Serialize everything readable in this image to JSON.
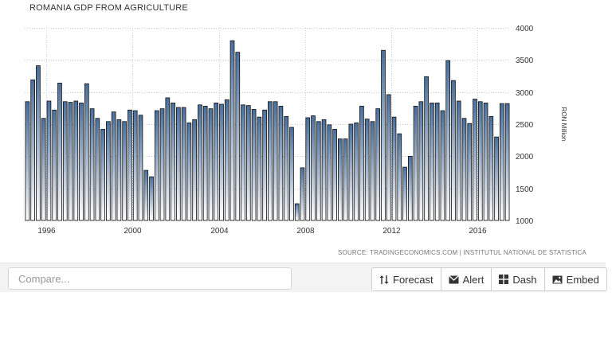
{
  "chart_data": {
    "type": "bar",
    "title": "ROMANIA GDP FROM AGRICULTURE",
    "ylabel": "RON Million",
    "ylim": [
      1000,
      4000
    ],
    "yticks": [
      1000,
      1500,
      2000,
      2500,
      3000,
      3500,
      4000
    ],
    "x_range": [
      1995.0,
      2017.5
    ],
    "xticks": [
      "1996",
      "2000",
      "2004",
      "2008",
      "2012",
      "2016"
    ],
    "grid": true,
    "legend": "none",
    "bar_color_top": "#4a6f9c",
    "bar_color_bottom": "#ffffff",
    "x": [
      1995.0,
      1995.25,
      1995.5,
      1995.75,
      1996.0,
      1996.25,
      1996.5,
      1996.75,
      1997.0,
      1997.25,
      1997.5,
      1997.75,
      1998.0,
      1998.25,
      1998.5,
      1998.75,
      1999.0,
      1999.25,
      1999.5,
      1999.75,
      2000.0,
      2000.25,
      2000.5,
      2000.75,
      2001.0,
      2001.25,
      2001.5,
      2001.75,
      2002.0,
      2002.25,
      2002.5,
      2002.75,
      2003.0,
      2003.25,
      2003.5,
      2003.75,
      2004.0,
      2004.25,
      2004.5,
      2004.75,
      2005.0,
      2005.25,
      2005.5,
      2005.75,
      2006.0,
      2006.25,
      2006.5,
      2006.75,
      2007.0,
      2007.25,
      2007.5,
      2007.75,
      2008.0,
      2008.25,
      2008.5,
      2008.75,
      2009.0,
      2009.25,
      2009.5,
      2009.75,
      2010.0,
      2010.25,
      2010.5,
      2010.75,
      2011.0,
      2011.25,
      2011.5,
      2011.75,
      2012.0,
      2012.25,
      2012.5,
      2012.75,
      2013.0,
      2013.25,
      2013.5,
      2013.75,
      2014.0,
      2014.25,
      2014.5,
      2014.75,
      2015.0,
      2015.25,
      2015.5,
      2015.75,
      2016.0,
      2016.25,
      2016.5,
      2016.75,
      2017.0,
      2017.25
    ],
    "values": [
      2850,
      3190,
      3410,
      2590,
      2860,
      2720,
      3140,
      2850,
      2840,
      2860,
      2830,
      3130,
      2740,
      2590,
      2420,
      2540,
      2690,
      2570,
      2540,
      2720,
      2710,
      2640,
      1780,
      1680,
      2710,
      2740,
      2910,
      2830,
      2760,
      2760,
      2520,
      2570,
      2800,
      2780,
      2740,
      2830,
      2810,
      2880,
      3800,
      3620,
      2800,
      2790,
      2730,
      2610,
      2720,
      2850,
      2850,
      2780,
      2620,
      2450,
      1260,
      1820,
      2600,
      2630,
      2540,
      2570,
      2490,
      2420,
      2270,
      2270,
      2500,
      2520,
      2780,
      2580,
      2540,
      2740,
      3650,
      2960,
      2610,
      2350,
      1830,
      2000,
      2780,
      2850,
      3240,
      2830,
      2830,
      2710,
      3490,
      3180,
      2860,
      2590,
      2510,
      2890,
      2850,
      2830,
      2620,
      2300,
      2820,
      2820
    ]
  },
  "source": "SOURCE: TRADINGECONOMICS.COM | INSTITUTUL NATIONAL DE STATISTICA",
  "toolbar": {
    "compare_placeholder": "Compare...",
    "forecast_label": "Forecast",
    "alert_label": "Alert",
    "dash_label": "Dash",
    "embed_label": "Embed"
  },
  "icons": {
    "forecast": "up-down-arrows-icon",
    "alert": "envelope-icon",
    "dash": "grid-icon",
    "embed": "image-icon"
  }
}
